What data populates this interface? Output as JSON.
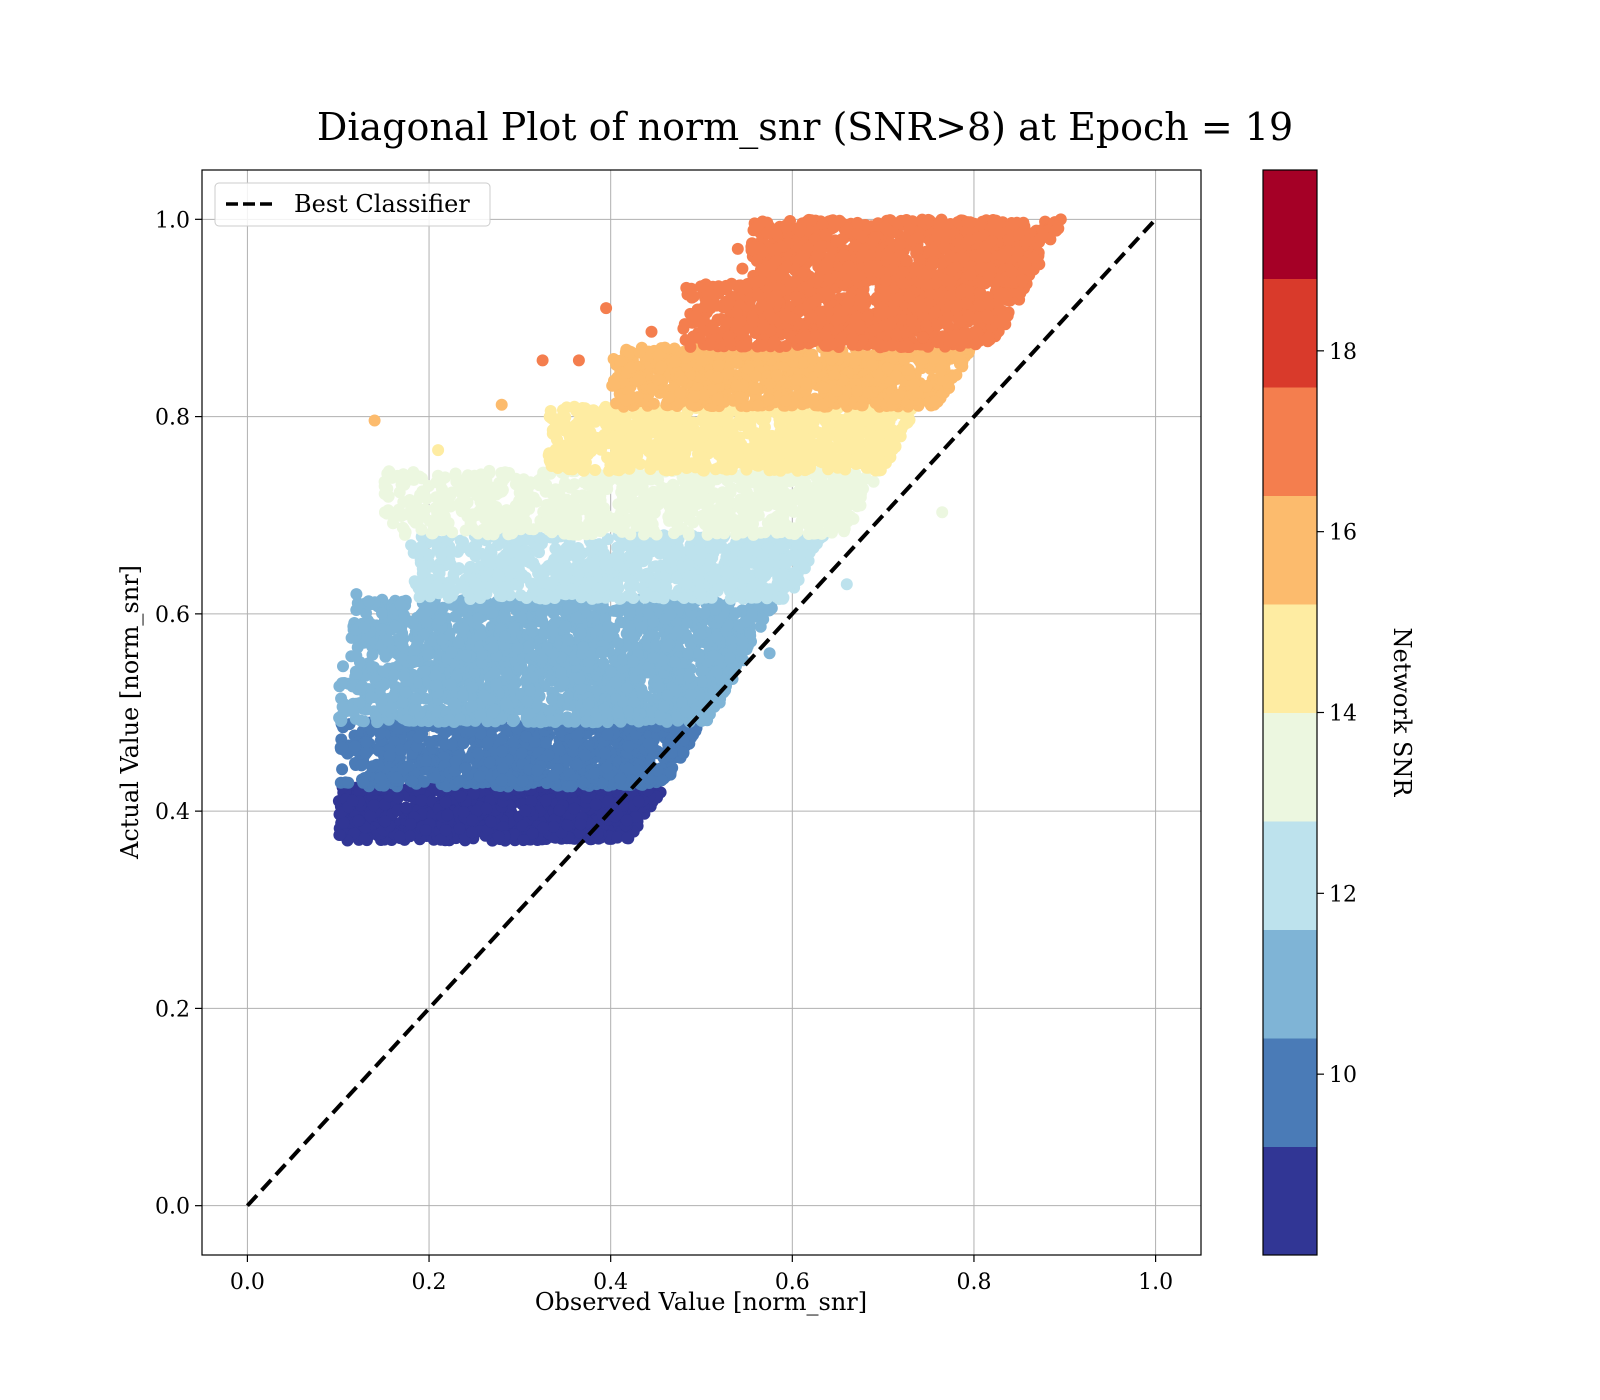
{
  "chart_data": {
    "type": "scatter",
    "title": "Diagonal Plot of norm_snr (SNR>8) at Epoch = 19",
    "xlabel": "Observed Value [norm_snr]",
    "ylabel": "Actual Value [norm_snr]",
    "xlim": [
      -0.05,
      1.05
    ],
    "ylim": [
      -0.05,
      1.05
    ],
    "xticks": [
      0.0,
      0.2,
      0.4,
      0.6,
      0.8,
      1.0
    ],
    "yticks": [
      0.0,
      0.2,
      0.4,
      0.6,
      0.8,
      1.0
    ],
    "xtick_labels": [
      "0.0",
      "0.2",
      "0.4",
      "0.6",
      "0.8",
      "1.0"
    ],
    "ytick_labels": [
      "0.0",
      "0.2",
      "0.4",
      "0.6",
      "0.8",
      "1.0"
    ],
    "grid": true,
    "legend": {
      "placement": "upper-left",
      "entries": [
        "Best Classifier"
      ]
    },
    "reference_line": {
      "name": "Best Classifier",
      "style": "dashed",
      "color": "#000000",
      "x": [
        0.0,
        1.0
      ],
      "y": [
        0.0,
        1.0
      ]
    },
    "colorbar": {
      "label": "Network SNR",
      "range": [
        8,
        20
      ],
      "ticks": [
        10,
        12,
        14,
        16,
        18
      ],
      "tick_labels": [
        "10",
        "12",
        "14",
        "16",
        "18"
      ],
      "colors": [
        "#313695",
        "#4a7bb7",
        "#7fb4d6",
        "#bde2ed",
        "#ecf7e0",
        "#feeca2",
        "#fcbb6d",
        "#f47e4e",
        "#d93a2b",
        "#a50026"
      ]
    },
    "bands": [
      {
        "snr": 8.5,
        "y_range": [
          0.37,
          0.425
        ],
        "x_range": [
          0.1,
          0.46
        ],
        "outliers": []
      },
      {
        "snr": 9.5,
        "y_range": [
          0.425,
          0.49
        ],
        "x_range": [
          0.1,
          0.5
        ],
        "outliers": [
          [
            0.47,
            0.47
          ]
        ]
      },
      {
        "snr": 10.5,
        "y_range": [
          0.49,
          0.55
        ],
        "x_range": [
          0.1,
          0.545
        ],
        "outliers": [
          [
            0.52,
            0.51
          ]
        ]
      },
      {
        "snr": 11.5,
        "y_range": [
          0.55,
          0.615
        ],
        "x_range": [
          0.11,
          0.585
        ],
        "outliers": [
          [
            0.12,
            0.62
          ],
          [
            0.575,
            0.56
          ]
        ]
      },
      {
        "snr": 12.5,
        "y_range": [
          0.615,
          0.68
        ],
        "x_range": [
          0.18,
          0.635
        ],
        "outliers": [
          [
            0.2,
            0.66
          ],
          [
            0.66,
            0.63
          ]
        ]
      },
      {
        "snr": 13.5,
        "y_range": [
          0.68,
          0.745
        ],
        "x_range": [
          0.15,
          0.7
        ],
        "outliers": [
          [
            0.155,
            0.705
          ],
          [
            0.18,
            0.705
          ],
          [
            0.765,
            0.703
          ]
        ]
      },
      {
        "snr": 14.5,
        "y_range": [
          0.745,
          0.81
        ],
        "x_range": [
          0.33,
          0.74
        ],
        "outliers": [
          [
            0.21,
            0.766
          ],
          [
            0.36,
            0.81
          ]
        ]
      },
      {
        "snr": 15.5,
        "y_range": [
          0.81,
          0.87
        ],
        "x_range": [
          0.4,
          0.8
        ],
        "outliers": [
          [
            0.14,
            0.796
          ],
          [
            0.28,
            0.812
          ]
        ]
      },
      {
        "snr": 16.5,
        "y_range": [
          0.87,
          0.935
        ],
        "x_range": [
          0.48,
          0.86
        ],
        "outliers": [
          [
            0.325,
            0.857
          ],
          [
            0.365,
            0.857
          ],
          [
            0.445,
            0.886
          ]
        ]
      },
      {
        "snr": 17.5,
        "y_range": [
          0.935,
          1.0
        ],
        "x_range": [
          0.55,
          0.9
        ],
        "outliers": [
          [
            0.395,
            0.91
          ],
          [
            0.54,
            0.97
          ],
          [
            0.545,
            0.95
          ]
        ]
      }
    ]
  }
}
